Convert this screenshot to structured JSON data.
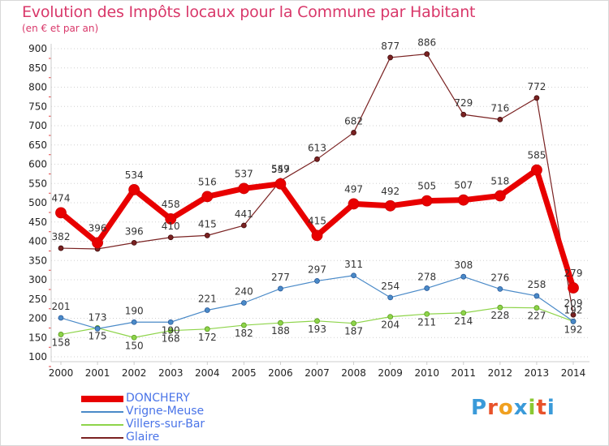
{
  "chart_data": {
    "type": "line",
    "title": "Evolution des Impôts locaux pour la Commune par Habitant",
    "subtitle": "(en € et par an)",
    "x": [
      "2000",
      "2001",
      "2002",
      "2003",
      "2004",
      "2005",
      "2006",
      "2007",
      "2008",
      "2009",
      "2010",
      "2011",
      "2012",
      "2013",
      "2014"
    ],
    "ylim": [
      100,
      900
    ],
    "yticks": [
      100,
      150,
      200,
      250,
      300,
      350,
      400,
      450,
      500,
      550,
      600,
      650,
      700,
      750,
      800,
      850,
      900
    ],
    "grid": "horizontal dotted",
    "legend_position": "bottom-left",
    "series": [
      {
        "name": "DONCHERY",
        "color": "#e80000",
        "values": [
          474,
          396,
          534,
          458,
          516,
          537,
          549,
          415,
          497,
          492,
          505,
          507,
          518,
          585,
          279
        ],
        "labels": [
          "474",
          "396",
          "534",
          "458",
          "516",
          "537",
          "549",
          "415",
          "497",
          "492",
          "505",
          "507",
          "518",
          "585",
          "279"
        ]
      },
      {
        "name": "Vrigne-Meuse",
        "color": "#4a8ac8",
        "values": [
          201,
          173,
          190,
          190,
          221,
          240,
          277,
          297,
          311,
          254,
          278,
          308,
          276,
          258,
          192
        ],
        "labels": [
          "201",
          "173",
          "190",
          "190",
          "221",
          "240",
          "277",
          "297",
          "311",
          "254",
          "278",
          "308",
          "276",
          "258",
          "192"
        ]
      },
      {
        "name": "Villers-sur-Bar",
        "color": "#8ed44a",
        "values": [
          158,
          175,
          150,
          168,
          172,
          182,
          188,
          193,
          187,
          204,
          211,
          214,
          228,
          227,
          192
        ],
        "labels": [
          "158",
          "175",
          "150",
          "168",
          "172",
          "182",
          "188",
          "193",
          "187",
          "204",
          "211",
          "214",
          "228",
          "227",
          "192"
        ]
      },
      {
        "name": "Glaire",
        "color": "#7a2222",
        "values": [
          382,
          380,
          396,
          410,
          415,
          441,
          557,
          613,
          682,
          877,
          886,
          729,
          716,
          772,
          209
        ],
        "labels": [
          "382",
          "",
          "396",
          "410",
          "415",
          "441",
          "557",
          "613",
          "682",
          "877",
          "886",
          "729",
          "716",
          "772",
          "209"
        ]
      }
    ]
  },
  "logo": {
    "text": "Proxiti",
    "colors": [
      "#3a9ad9",
      "#e8522a",
      "#f0a020",
      "#3a9ad9",
      "#8ac832",
      "#e8522a",
      "#3a9ad9"
    ]
  }
}
